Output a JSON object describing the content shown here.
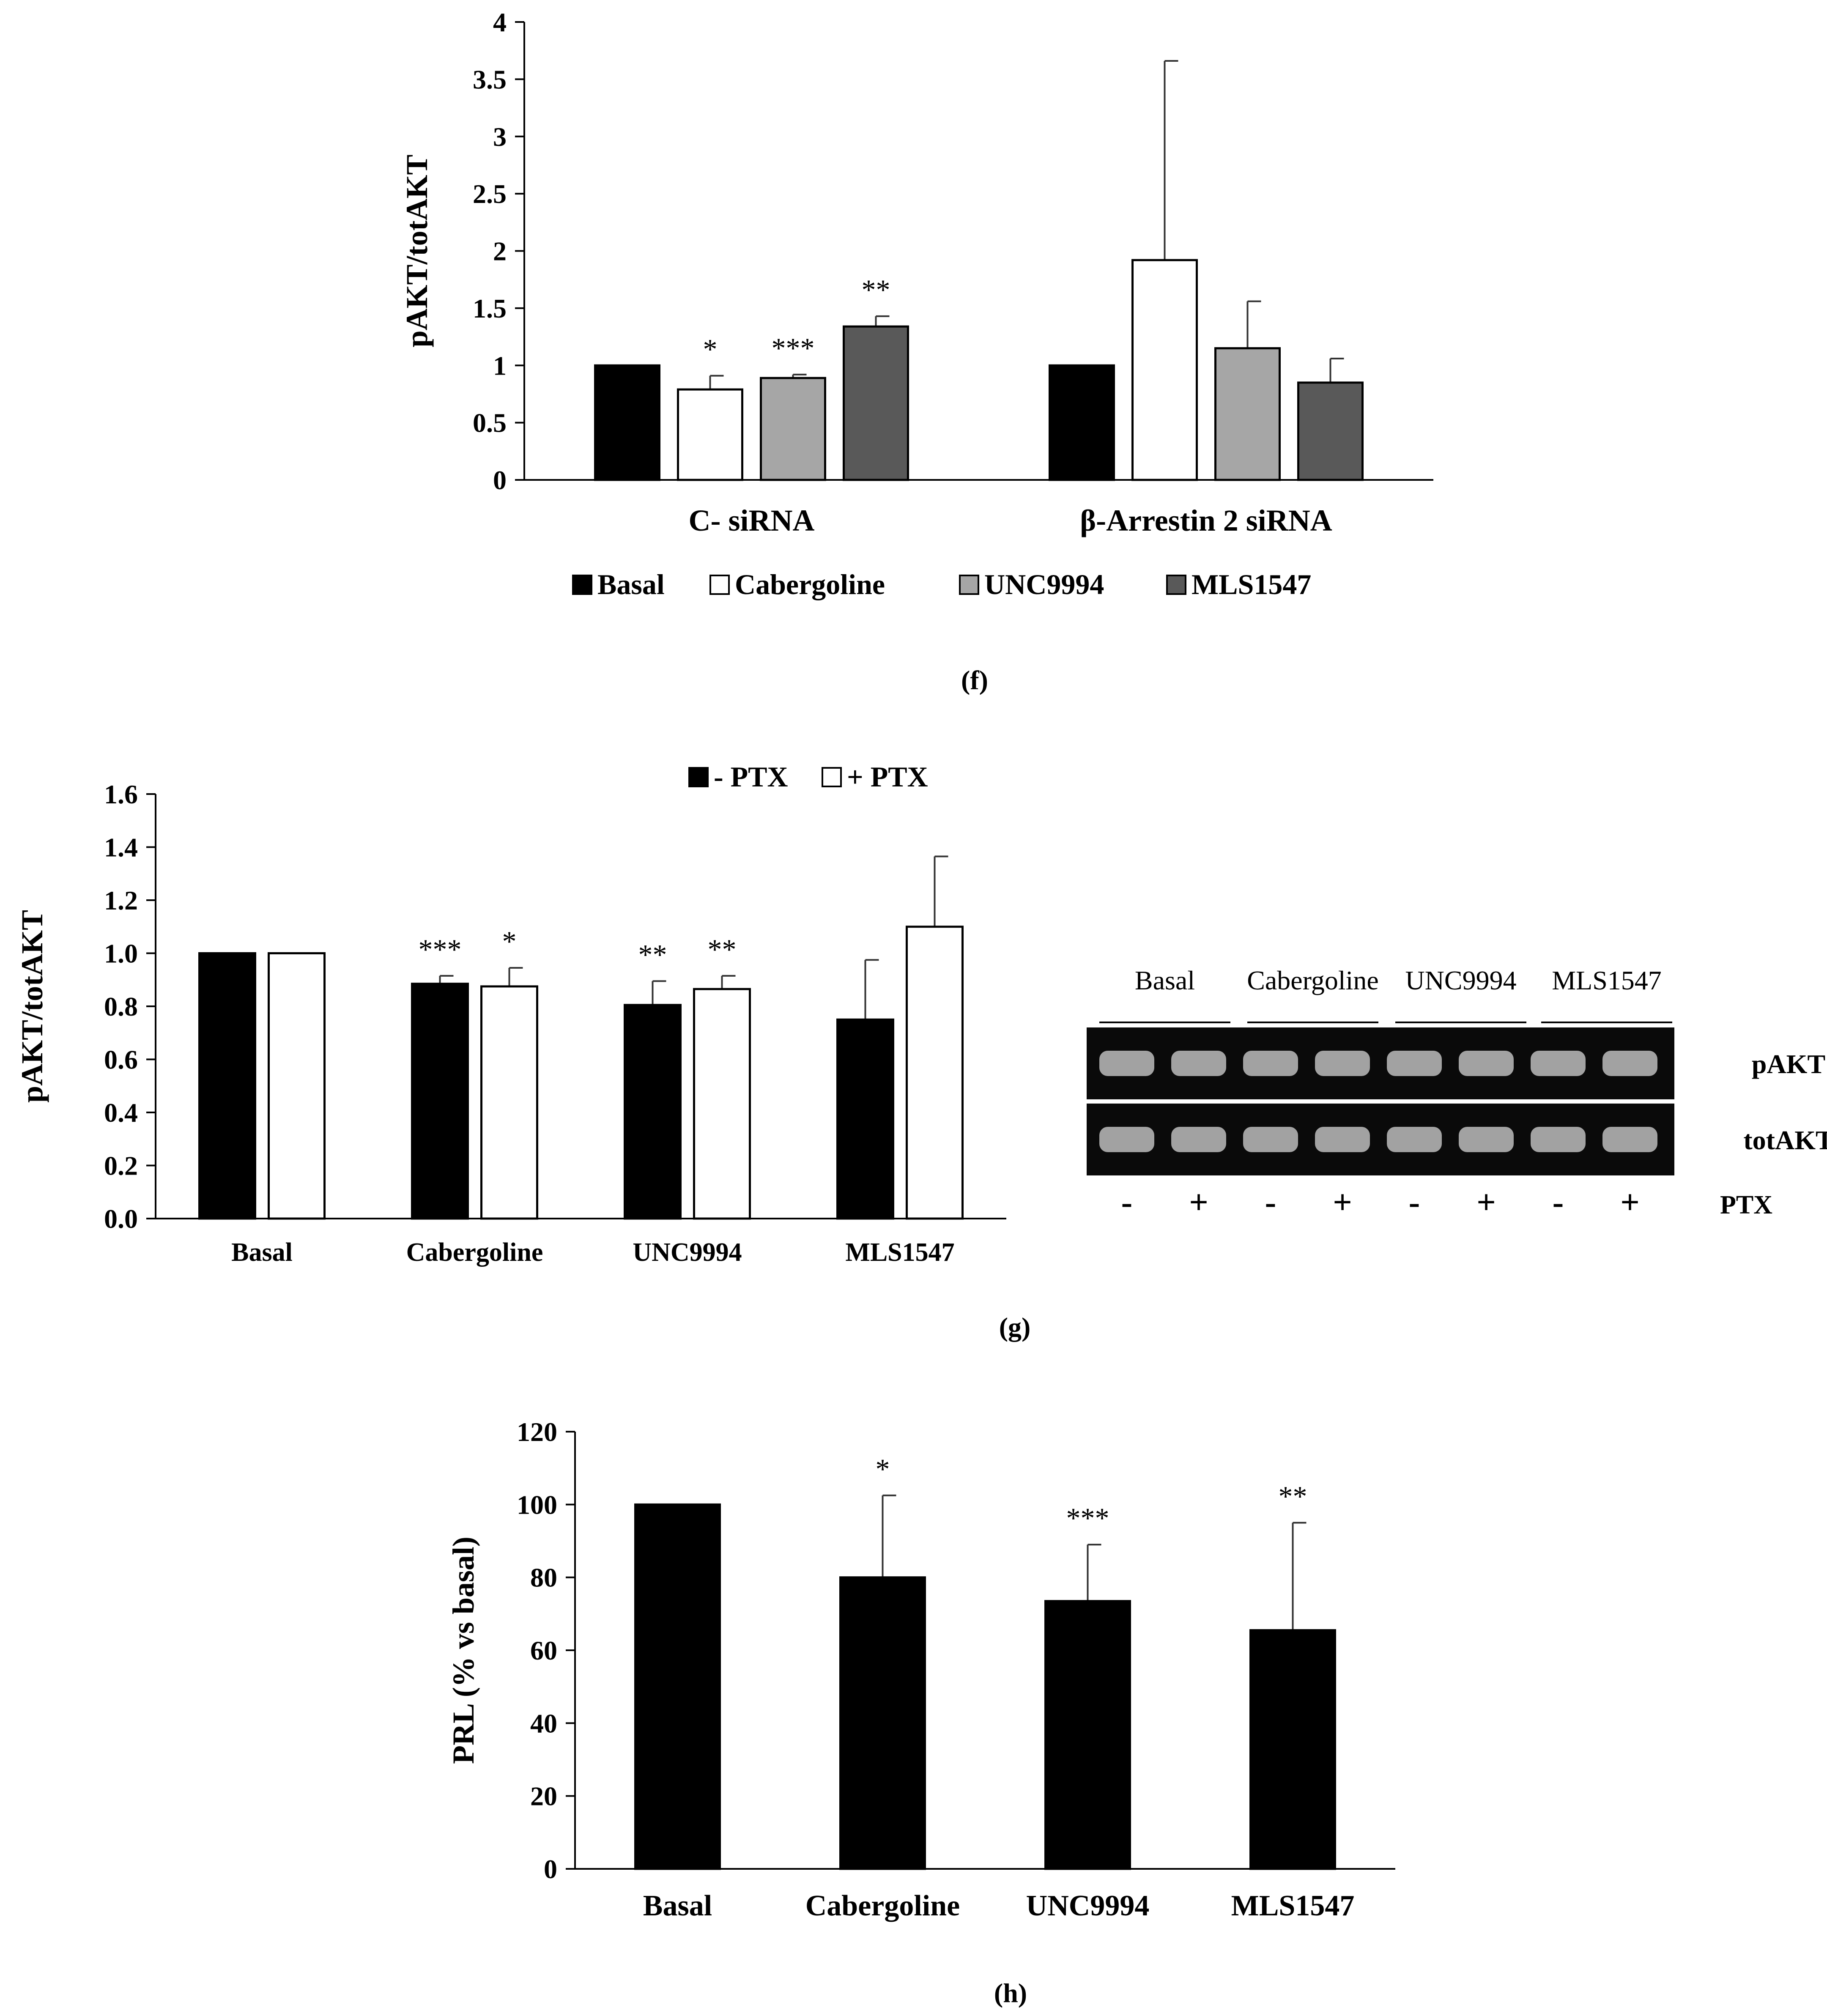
{
  "colors": {
    "black": "#000000",
    "white": "#ffffff",
    "light_gray": "#a6a6a6",
    "dark_gray": "#595959",
    "gel_bg": "#0a0a0a",
    "band": "#bdbdbd"
  },
  "chart_data": [
    {
      "panel": "f",
      "caption": "(f)",
      "type": "bar",
      "title": "",
      "xlabel": "",
      "ylabel": "pAKT/totAKT",
      "ylim": [
        0,
        4
      ],
      "yticks": [
        "0",
        "0.5",
        "1",
        "1.5",
        "2",
        "2.5",
        "3",
        "3.5",
        "4"
      ],
      "categories": [
        "C- siRNA",
        "β-Arrestin 2 siRNA"
      ],
      "legend_position": "bottom",
      "series": [
        {
          "name": "Basal",
          "color": "#000000",
          "values": [
            1.0,
            1.0
          ],
          "errors": [
            0,
            0
          ],
          "sig": [
            "",
            ""
          ]
        },
        {
          "name": "Cabergoline",
          "color": "#ffffff",
          "values": [
            0.79,
            1.92
          ],
          "errors": [
            0.12,
            1.74
          ],
          "sig": [
            "*",
            ""
          ]
        },
        {
          "name": "UNC9994",
          "color": "#a6a6a6",
          "values": [
            0.89,
            1.15
          ],
          "errors": [
            0.03,
            0.41
          ],
          "sig": [
            "***",
            ""
          ]
        },
        {
          "name": "MLS1547",
          "color": "#595959",
          "values": [
            1.34,
            0.85
          ],
          "errors": [
            0.09,
            0.21
          ],
          "sig": [
            "**",
            ""
          ]
        }
      ]
    },
    {
      "panel": "g",
      "caption": "(g)",
      "type": "bar",
      "title": "",
      "xlabel": "",
      "ylabel": "pAKT/totAKT",
      "ylim": [
        0,
        1.6
      ],
      "yticks": [
        "0.0",
        "0.2",
        "0.4",
        "0.6",
        "0.8",
        "1.0",
        "1.2",
        "1.4",
        "1.6"
      ],
      "categories": [
        "Basal",
        "Cabergoline",
        "UNC9994",
        "MLS1547"
      ],
      "legend_position": "top",
      "series": [
        {
          "name": "- PTX",
          "color": "#000000",
          "values": [
            1.0,
            0.885,
            0.805,
            0.75
          ],
          "errors": [
            0,
            0.03,
            0.09,
            0.225
          ],
          "sig": [
            "",
            "***",
            "**",
            ""
          ]
        },
        {
          "name": "+ PTX",
          "color": "#ffffff",
          "values": [
            1.0,
            0.875,
            0.865,
            1.1
          ],
          "errors": [
            0,
            0.07,
            0.05,
            0.265
          ],
          "sig": [
            "",
            "*",
            "**",
            ""
          ]
        }
      ],
      "blot": {
        "group_labels": [
          "Basal",
          "Cabergoline",
          "UNC9994",
          "MLS1547"
        ],
        "row_labels": [
          "pAKT",
          "totAKT"
        ],
        "lane_marks": [
          "-",
          "+",
          "-",
          "+",
          "-",
          "+",
          "-",
          "+"
        ],
        "treatment_label": "PTX"
      }
    },
    {
      "panel": "h",
      "caption": "(h)",
      "type": "bar",
      "title": "",
      "xlabel": "",
      "ylabel": "PRL (% vs basal)",
      "ylim": [
        0,
        120
      ],
      "yticks": [
        "0",
        "20",
        "40",
        "60",
        "80",
        "100",
        "120"
      ],
      "categories": [
        "Basal",
        "Cabergoline",
        "UNC9994",
        "MLS1547"
      ],
      "legend_position": "none",
      "series": [
        {
          "name": "PRL",
          "color": "#000000",
          "values": [
            100,
            80,
            73.5,
            65.5
          ],
          "errors": [
            0,
            22.5,
            15.5,
            29.5
          ],
          "sig": [
            "",
            "*",
            "***",
            "**"
          ]
        }
      ]
    }
  ]
}
